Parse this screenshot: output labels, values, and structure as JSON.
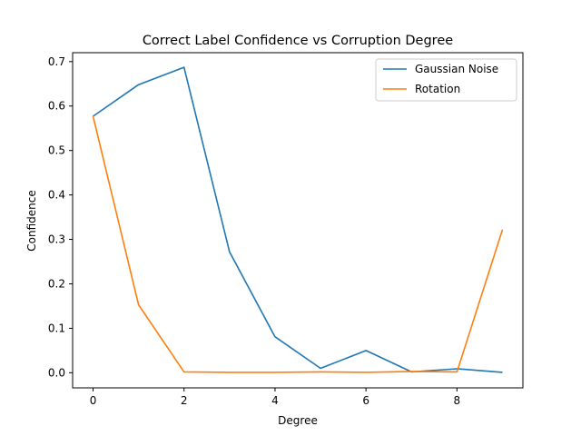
{
  "chart_data": {
    "type": "line",
    "title": "Correct Label Confidence vs Corruption Degree",
    "xlabel": "Degree",
    "ylabel": "Confidence",
    "x": [
      0,
      1,
      2,
      3,
      4,
      5,
      6,
      7,
      8,
      9
    ],
    "xlim": [
      -0.45,
      9.45
    ],
    "ylim": [
      -0.034,
      0.72
    ],
    "xticks": [
      0,
      2,
      4,
      6,
      8
    ],
    "yticks": [
      0.0,
      0.1,
      0.2,
      0.3,
      0.4,
      0.5,
      0.6,
      0.7
    ],
    "ytick_labels": [
      "0.0",
      "0.1",
      "0.2",
      "0.3",
      "0.4",
      "0.5",
      "0.6",
      "0.7"
    ],
    "grid": false,
    "legend_position": "top-right",
    "series": [
      {
        "name": "Gaussian Noise",
        "color": "#1f77b4",
        "values": [
          0.577,
          0.648,
          0.687,
          0.272,
          0.081,
          0.01,
          0.05,
          0.002,
          0.009,
          0.001
        ]
      },
      {
        "name": "Rotation",
        "color": "#ff7f0e",
        "values": [
          0.577,
          0.153,
          0.002,
          0.001,
          0.001,
          0.002,
          0.001,
          0.003,
          0.002,
          0.322
        ]
      }
    ]
  }
}
